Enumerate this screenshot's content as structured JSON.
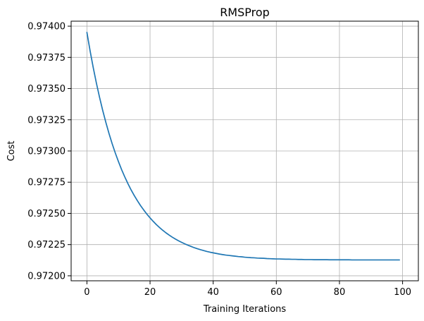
{
  "chart_data": {
    "type": "line",
    "title": "RMSProp",
    "xlabel": "Training Iterations",
    "ylabel": "Cost",
    "xlim": [
      -5,
      105
    ],
    "ylim": [
      0.97196,
      0.97404
    ],
    "xticks": [
      0,
      20,
      40,
      60,
      80,
      100
    ],
    "xtick_labels": [
      "0",
      "20",
      "40",
      "60",
      "80",
      "100"
    ],
    "yticks": [
      0.972,
      0.97225,
      0.9725,
      0.97275,
      0.973,
      0.97325,
      0.9735,
      0.97375,
      0.974
    ],
    "ytick_labels": [
      "0.97200",
      "0.97225",
      "0.97250",
      "0.97275",
      "0.97300",
      "0.97325",
      "0.97350",
      "0.97375",
      "0.97400"
    ],
    "grid": true,
    "series": [
      {
        "color": "#1f77b4",
        "x": [
          0,
          1,
          2,
          3,
          4,
          5,
          6,
          7,
          8,
          9,
          10,
          11,
          12,
          13,
          14,
          15,
          16,
          17,
          18,
          19,
          20,
          21,
          22,
          23,
          24,
          25,
          26,
          27,
          28,
          29,
          30,
          31,
          32,
          33,
          34,
          35,
          36,
          37,
          38,
          39,
          40,
          41,
          42,
          43,
          44,
          45,
          46,
          47,
          48,
          49,
          50,
          51,
          52,
          53,
          54,
          55,
          56,
          57,
          58,
          59,
          60,
          61,
          62,
          63,
          64,
          65,
          66,
          67,
          68,
          69,
          70,
          71,
          72,
          73,
          74,
          75,
          76,
          77,
          78,
          79,
          80,
          81,
          82,
          83,
          84,
          85,
          86,
          87,
          88,
          89,
          90,
          91,
          92,
          93,
          94,
          95,
          96,
          97,
          98,
          99
        ],
        "y": [
          0.97395,
          0.973803,
          0.973668,
          0.973544,
          0.97343,
          0.973325,
          0.973229,
          0.97314,
          0.973058,
          0.972983,
          0.972914,
          0.97285,
          0.972792,
          0.972738,
          0.972688,
          0.972643,
          0.972601,
          0.972562,
          0.972527,
          0.972494,
          0.972464,
          0.972436,
          0.97241,
          0.972387,
          0.972365,
          0.972345,
          0.972327,
          0.97231,
          0.972295,
          0.972281,
          0.972268,
          0.972256,
          0.972245,
          0.972235,
          0.972225,
          0.972217,
          0.972209,
          0.972202,
          0.972195,
          0.972189,
          0.972184,
          0.972179,
          0.972174,
          0.97217,
          0.972166,
          0.972163,
          0.97216,
          0.972157,
          0.972154,
          0.972152,
          0.972149,
          0.972147,
          0.972145,
          0.972144,
          0.972142,
          0.972141,
          0.97214,
          0.972138,
          0.972137,
          0.972136,
          0.972135,
          0.972135,
          0.972134,
          0.972133,
          0.972133,
          0.972132,
          0.972132,
          0.972131,
          0.972131,
          0.97213,
          0.97213,
          0.97213,
          0.972129,
          0.972129,
          0.972129,
          0.972129,
          0.972129,
          0.972128,
          0.972128,
          0.972128,
          0.972128,
          0.972128,
          0.972128,
          0.972128,
          0.972127,
          0.972127,
          0.972127,
          0.972127,
          0.972127,
          0.972127,
          0.972127,
          0.972127,
          0.972127,
          0.972127,
          0.972127,
          0.972127,
          0.972127,
          0.972127,
          0.972127,
          0.972127
        ]
      }
    ]
  }
}
